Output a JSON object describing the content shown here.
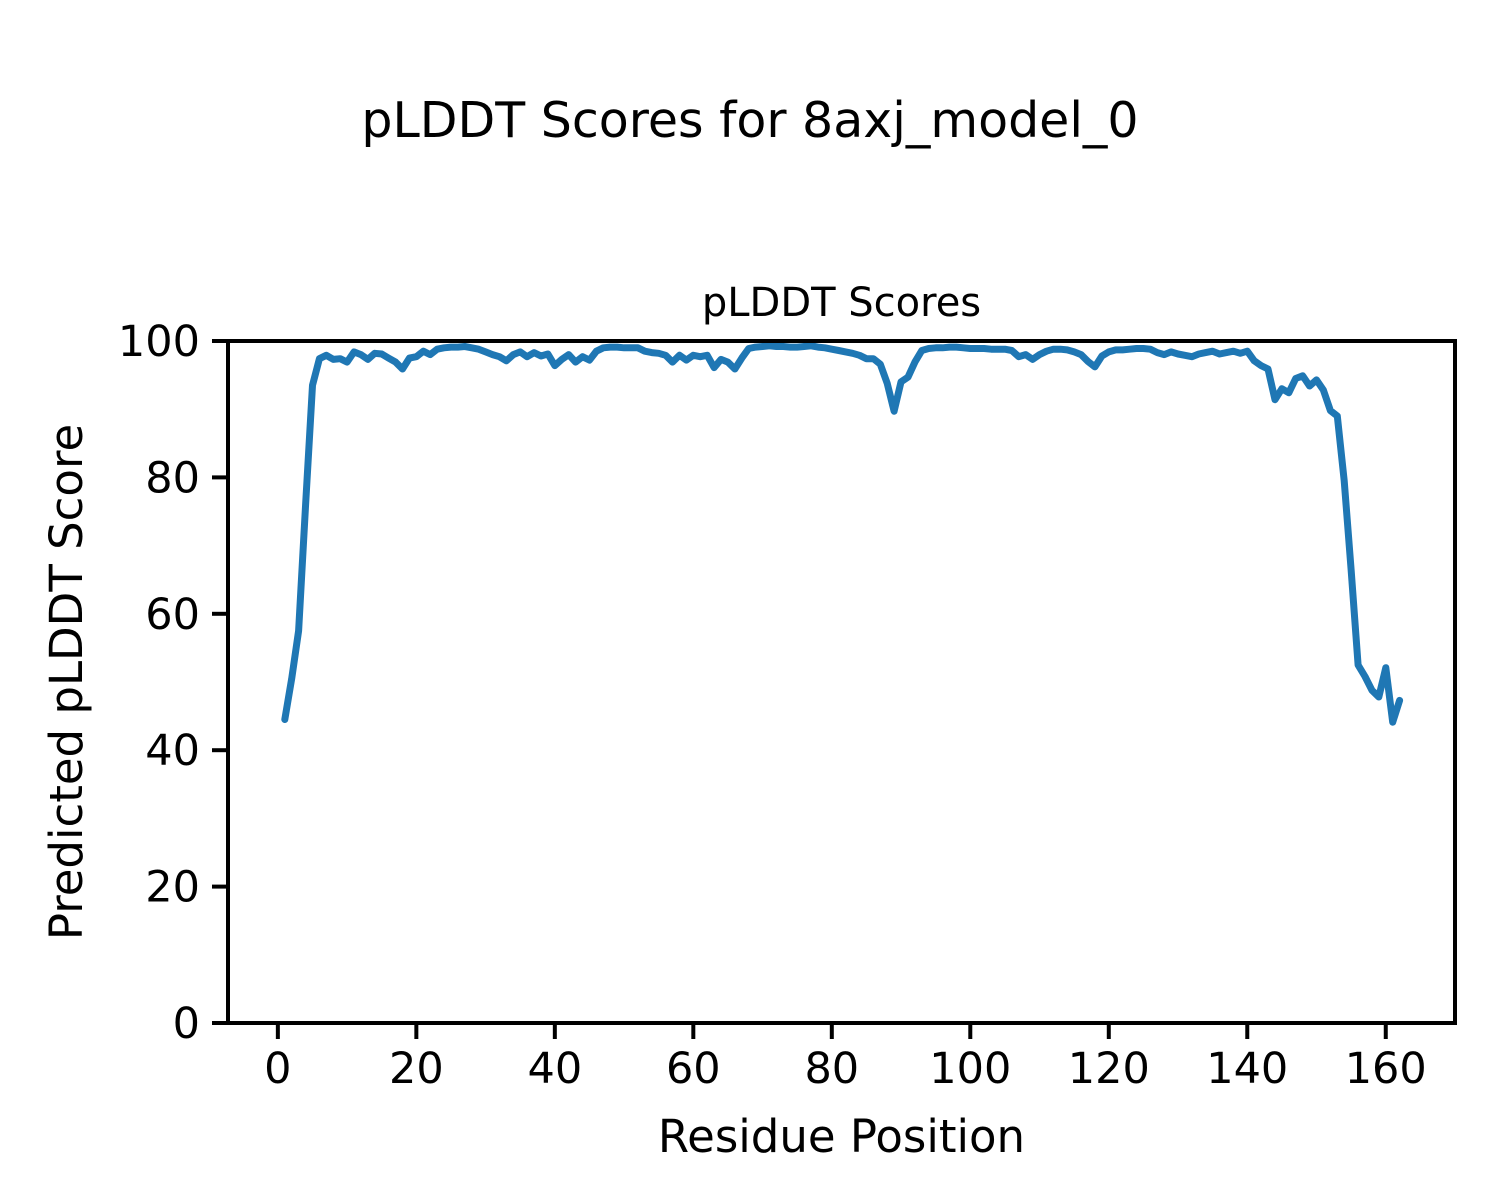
{
  "figure": {
    "suptitle": "pLDDT Scores for 8axj_model_0"
  },
  "chart_data": {
    "type": "line",
    "title": "pLDDT Scores",
    "xlabel": "Residue Position",
    "ylabel": "Predicted pLDDT Score",
    "series_name": "pLDDT",
    "line_color": "#1f77b4",
    "line_width": 7,
    "grid": false,
    "legend": null,
    "xlim": [
      -7.2,
      170.0
    ],
    "ylim": [
      0,
      100
    ],
    "xticks": [
      0,
      20,
      40,
      60,
      80,
      100,
      120,
      140,
      160
    ],
    "yticks": [
      0,
      20,
      40,
      60,
      80,
      100
    ],
    "x": [
      1,
      2,
      3,
      4,
      5,
      6,
      7,
      8,
      9,
      10,
      11,
      12,
      13,
      14,
      15,
      16,
      17,
      18,
      19,
      20,
      21,
      22,
      23,
      24,
      25,
      26,
      27,
      28,
      29,
      30,
      31,
      32,
      33,
      34,
      35,
      36,
      37,
      38,
      39,
      40,
      41,
      42,
      43,
      44,
      45,
      46,
      47,
      48,
      49,
      50,
      51,
      52,
      53,
      54,
      55,
      56,
      57,
      58,
      59,
      60,
      61,
      62,
      63,
      64,
      65,
      66,
      67,
      68,
      69,
      70,
      71,
      72,
      73,
      74,
      75,
      76,
      77,
      78,
      79,
      80,
      81,
      82,
      83,
      84,
      85,
      86,
      87,
      88,
      89,
      90,
      91,
      92,
      93,
      94,
      95,
      96,
      97,
      98,
      99,
      100,
      101,
      102,
      103,
      104,
      105,
      106,
      107,
      108,
      109,
      110,
      111,
      112,
      113,
      114,
      115,
      116,
      117,
      118,
      119,
      120,
      121,
      122,
      123,
      124,
      125,
      126,
      127,
      128,
      129,
      130,
      131,
      132,
      133,
      134,
      135,
      136,
      137,
      138,
      139,
      140,
      141,
      142,
      143,
      144,
      145,
      146,
      147,
      148,
      149,
      150,
      151,
      152,
      153,
      154,
      155,
      156,
      157,
      158,
      159,
      160,
      161,
      162
    ],
    "y": [
      44.5,
      50.5,
      57.5,
      76.0,
      93.5,
      97.4,
      97.9,
      97.3,
      97.4,
      96.9,
      98.4,
      98.0,
      97.3,
      98.2,
      98.1,
      97.5,
      96.9,
      95.9,
      97.5,
      97.7,
      98.5,
      98.0,
      98.8,
      99.0,
      99.1,
      99.1,
      99.2,
      99.0,
      98.8,
      98.4,
      98.0,
      97.7,
      97.1,
      98.0,
      98.4,
      97.7,
      98.3,
      97.8,
      98.1,
      96.4,
      97.3,
      98.0,
      96.9,
      97.7,
      97.2,
      98.5,
      99.0,
      99.1,
      99.1,
      99.0,
      99.0,
      99.0,
      98.5,
      98.3,
      98.2,
      97.9,
      96.9,
      97.9,
      97.2,
      97.9,
      97.7,
      97.9,
      96.1,
      97.3,
      96.9,
      95.9,
      97.5,
      98.9,
      99.1,
      99.2,
      99.3,
      99.2,
      99.2,
      99.1,
      99.1,
      99.2,
      99.3,
      99.1,
      99.0,
      98.8,
      98.6,
      98.4,
      98.2,
      97.9,
      97.4,
      97.4,
      96.6,
      93.8,
      89.7,
      94.0,
      94.7,
      96.9,
      98.6,
      98.9,
      99.0,
      99.0,
      99.1,
      99.1,
      99.0,
      98.9,
      98.9,
      98.9,
      98.8,
      98.8,
      98.8,
      98.6,
      97.7,
      98.0,
      97.3,
      98.0,
      98.5,
      98.8,
      98.8,
      98.7,
      98.4,
      98.0,
      97.0,
      96.2,
      97.8,
      98.4,
      98.7,
      98.7,
      98.8,
      98.9,
      98.9,
      98.8,
      98.3,
      98.0,
      98.4,
      98.1,
      97.9,
      97.7,
      98.1,
      98.3,
      98.5,
      98.1,
      98.3,
      98.5,
      98.2,
      98.5,
      97.1,
      96.4,
      95.9,
      91.4,
      93.0,
      92.4,
      94.5,
      94.9,
      93.4,
      94.3,
      92.8,
      89.8,
      89.0,
      79.5,
      66.5,
      52.5,
      50.8,
      48.8,
      47.8,
      52.1,
      44.1,
      47.3
    ]
  }
}
